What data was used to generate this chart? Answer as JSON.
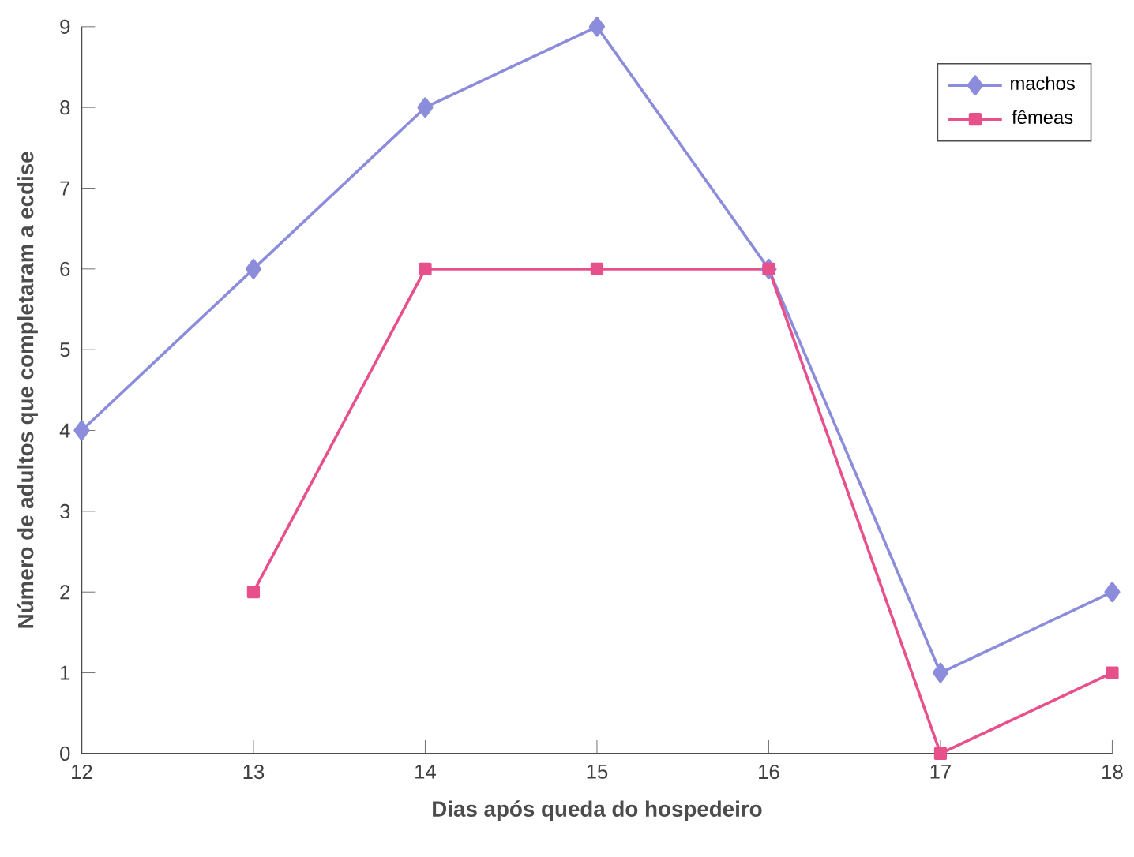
{
  "chart_data": {
    "type": "line",
    "xlabel": "Dias após queda do hospedeiro",
    "ylabel": "Número de adultos que completaram a ecdise",
    "xlim": [
      12,
      18
    ],
    "xticks": [
      12,
      13,
      14,
      15,
      16,
      17,
      18
    ],
    "ylim": [
      0,
      9
    ],
    "yticks": [
      0,
      1,
      2,
      3,
      4,
      5,
      6,
      7,
      8,
      9
    ],
    "grid": false,
    "legend": "top right",
    "series": [
      {
        "name": "machos",
        "color": "#8c8cdc",
        "marker": "diamond",
        "x": [
          12,
          13,
          14,
          15,
          16,
          17,
          18
        ],
        "values": [
          4,
          6,
          8,
          9,
          6,
          1,
          2
        ]
      },
      {
        "name": "fêmeas",
        "color": "#e8508c",
        "marker": "square",
        "x": [
          13,
          14,
          15,
          16,
          17,
          18
        ],
        "values": [
          2,
          6,
          6,
          6,
          0,
          1
        ]
      }
    ]
  }
}
